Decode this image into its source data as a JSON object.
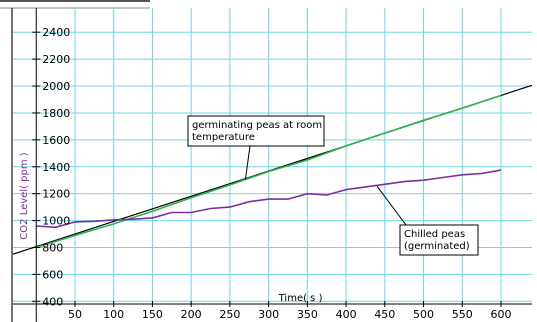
{
  "chart_data": {
    "type": "line",
    "title": "",
    "xlabel": "Time( s )",
    "ylabel": "CO2 Level( ppm )",
    "xlim": [
      -30,
      640
    ],
    "ylim": [
      380,
      2580
    ],
    "x_ticks": [
      50,
      100,
      150,
      200,
      250,
      300,
      350,
      400,
      450,
      500,
      550,
      600
    ],
    "y_ticks": [
      400,
      600,
      800,
      1000,
      1200,
      1400,
      1600,
      1800,
      2000,
      2200,
      2400
    ],
    "grid": true,
    "series": [
      {
        "color": "#2db34a",
        "x": [
          0,
          50,
          100,
          150,
          200,
          250,
          300,
          350,
          400,
          450,
          500,
          550,
          600
        ],
        "y": [
          800,
          890,
          975,
          1070,
          1170,
          1265,
          1365,
          1450,
          1555,
          1650,
          1745,
          1835,
          1930
        ]
      },
      {
        "color": "#7a2ea0",
        "x": [
          0,
          25,
          50,
          75,
          100,
          125,
          150,
          175,
          200,
          225,
          250,
          275,
          300,
          325,
          350,
          375,
          400,
          425,
          450,
          475,
          500,
          525,
          550,
          575,
          600
        ],
        "y": [
          960,
          950,
          990,
          995,
          1005,
          1010,
          1020,
          1060,
          1060,
          1090,
          1100,
          1140,
          1160,
          1160,
          1200,
          1190,
          1230,
          1250,
          1270,
          1290,
          1300,
          1320,
          1340,
          1350,
          1375
        ]
      }
    ],
    "fit_line": {
      "color": "#000000",
      "x": [
        -30,
        640
      ],
      "y": [
        750,
        2005
      ]
    },
    "annotations": [
      {
        "lines": [
          "germinating peas at room",
          "temperature"
        ],
        "target": {
          "x": 270,
          "y": 1305
        }
      },
      {
        "lines": [
          "Chilled peas",
          "(germinated)"
        ],
        "target": {
          "x": 440,
          "y": 1255
        }
      }
    ],
    "colors": {
      "grid": "#6fd6e8",
      "axis": "#000000",
      "xlabel": "#000000",
      "ylabel": "#7a2ea0"
    }
  }
}
